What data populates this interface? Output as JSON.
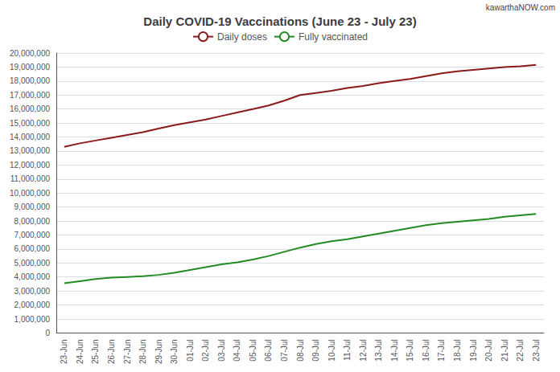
{
  "chart_data": {
    "type": "line",
    "title": "Daily COVID-19 Vaccinations (June 23 - July 23)",
    "annotations": [
      "kawarthaNOW.com"
    ],
    "categories": [
      "23-Jun",
      "24-Jun",
      "25-Jun",
      "26-Jun",
      "27-Jun",
      "28-Jun",
      "29-Jun",
      "30-Jun",
      "01-Jul",
      "02-Jul",
      "03-Jul",
      "04-Jul",
      "05-Jul",
      "06-Jul",
      "07-Jul",
      "08-Jul",
      "09-Jul",
      "10-Jul",
      "11-Jul",
      "12-Jul",
      "13-Jul",
      "14-Jul",
      "15-Jul",
      "16-Jul",
      "17-Jul",
      "18-Jul",
      "19-Jul",
      "20-Jul",
      "21-Jul",
      "22-Jul",
      "23-Jul"
    ],
    "series": [
      {
        "name": "Daily doses",
        "color": "#8B1A1A",
        "values": [
          13300000,
          13550000,
          13750000,
          13950000,
          14150000,
          14350000,
          14600000,
          14850000,
          15050000,
          15250000,
          15500000,
          15750000,
          16000000,
          16250000,
          16600000,
          17000000,
          17150000,
          17300000,
          17500000,
          17650000,
          17850000,
          18000000,
          18150000,
          18350000,
          18550000,
          18700000,
          18800000,
          18900000,
          19000000,
          19050000,
          19150000
        ]
      },
      {
        "name": "Fully vaccinated",
        "color": "#228B22",
        "values": [
          3550000,
          3700000,
          3850000,
          3950000,
          4000000,
          4050000,
          4150000,
          4300000,
          4500000,
          4700000,
          4900000,
          5050000,
          5250000,
          5500000,
          5800000,
          6100000,
          6350000,
          6550000,
          6700000,
          6900000,
          7100000,
          7300000,
          7500000,
          7700000,
          7850000,
          7950000,
          8050000,
          8150000,
          8300000,
          8400000,
          8500000
        ]
      }
    ],
    "ylim": [
      0,
      20000000
    ],
    "yticks": [
      0,
      {
        "value": 1000000,
        "label": "1,000,000"
      },
      {
        "value": 2000000,
        "label": "2,000,000"
      },
      {
        "value": 3000000,
        "label": "3,000,000"
      },
      {
        "value": 4000000,
        "label": "4,000,000"
      },
      {
        "value": 5000000,
        "label": "5,000,000"
      },
      {
        "value": 6000000,
        "label": "6,000,000"
      },
      {
        "value": 7000000,
        "label": "7,000,000"
      },
      {
        "value": 8000000,
        "label": "8,000,000"
      },
      {
        "value": 9000000,
        "label": "9,000,000"
      },
      {
        "value": 10000000,
        "label": "10,000,000"
      },
      {
        "value": 11000000,
        "label": "11,000,000"
      },
      {
        "value": 12000000,
        "label": "12,000,000"
      },
      {
        "value": 13000000,
        "label": "13,000,000"
      },
      {
        "value": 14000000,
        "label": "14,000,000"
      },
      {
        "value": 15000000,
        "label": "15,000,000"
      },
      {
        "value": 16000000,
        "label": "16,000,000"
      },
      {
        "value": 17000000,
        "label": "17,000,000"
      },
      {
        "value": 18000000,
        "label": "18,000,000"
      },
      {
        "value": 19000000,
        "label": "19,000,000"
      },
      {
        "value": 20000000,
        "label": "20,000,000"
      }
    ],
    "grid": true,
    "legend": "upper center"
  }
}
